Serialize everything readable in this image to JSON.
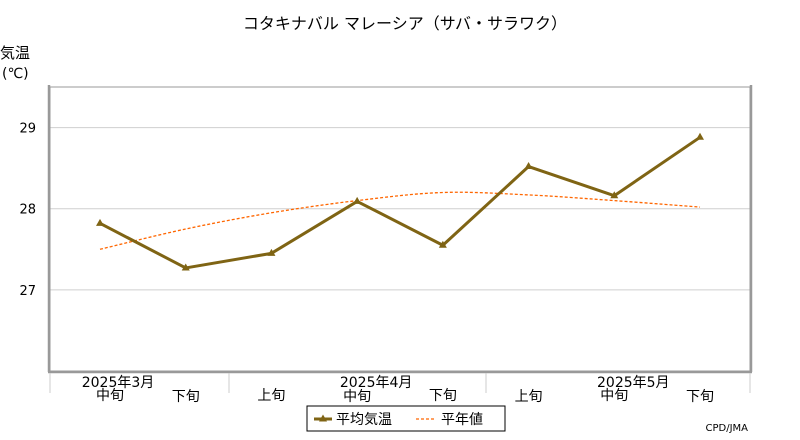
{
  "chart_data": {
    "type": "line",
    "title": "コタキナバル マレーシア（サバ・サラワク）",
    "ylabel_line1": "気温",
    "ylabel_line2": "(℃)",
    "ylim": [
      26,
      29.5
    ],
    "yticks": [
      27,
      28,
      29
    ],
    "categories": [
      "中旬",
      "下旬",
      "上旬",
      "中旬",
      "下旬",
      "上旬",
      "中旬",
      "下旬"
    ],
    "month_labels": [
      {
        "label": "2025年3月",
        "index": 0
      },
      {
        "label": "2025年4月",
        "index": 3
      },
      {
        "label": "2025年5月",
        "index": 6
      }
    ],
    "series": [
      {
        "name": "平均気温",
        "color": "#7f6414",
        "style": "solid-triangle",
        "values": [
          27.82,
          27.27,
          27.45,
          28.09,
          27.55,
          28.52,
          28.16,
          28.88
        ]
      },
      {
        "name": "平年値",
        "color": "#ff6600",
        "style": "dashed",
        "values": [
          27.5,
          27.75,
          27.95,
          28.1,
          28.2,
          28.17,
          28.1,
          28.02
        ]
      }
    ],
    "grid": true,
    "legend": "bottom-center",
    "credit": "CPD/JMA"
  }
}
